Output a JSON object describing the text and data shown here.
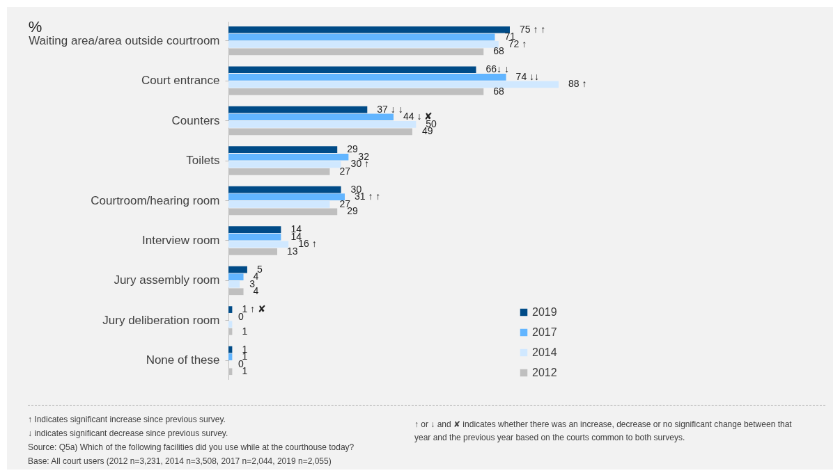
{
  "chart_data": {
    "type": "bar",
    "orientation": "horizontal",
    "title": "%",
    "categories": [
      "Waiting area/area outside courtroom",
      "Court entrance",
      "Counters",
      "Toilets",
      "Courtroom/hearing room",
      "Interview room",
      "Jury assembly room",
      "Jury deliberation room",
      "None of these"
    ],
    "series": [
      {
        "name": "2019",
        "color": "#004b87",
        "values": [
          75,
          66,
          37,
          29,
          30,
          14,
          5,
          1,
          1
        ],
        "value_labels": [
          "75 ↑ ↑",
          "66↓ ↓",
          "37 ↓ ↓",
          "29",
          "30",
          "14",
          "5",
          "1 ↑ ✘",
          "1"
        ]
      },
      {
        "name": "2017",
        "color": "#62b5ff",
        "values": [
          71,
          74,
          44,
          32,
          31,
          14,
          4,
          0,
          1
        ],
        "value_labels": [
          "71",
          "74 ↓↓",
          "44 ↓ ✘",
          "32",
          "31 ↑ ↑",
          "14",
          "4",
          "0",
          "1"
        ]
      },
      {
        "name": "2014",
        "color": "#d0e8ff",
        "values": [
          72,
          88,
          50,
          30,
          27,
          16,
          3,
          1,
          0
        ],
        "value_labels": [
          "72 ↑",
          "88 ↑",
          "50",
          "30 ↑",
          "27",
          "16 ↑",
          "3",
          null,
          "0"
        ]
      },
      {
        "name": "2012",
        "color": "#bfbfbf",
        "values": [
          68,
          68,
          49,
          27,
          29,
          13,
          4,
          1,
          1
        ],
        "value_labels": [
          "68",
          "68",
          "49",
          "27",
          "29",
          "13",
          "4",
          "1",
          "1"
        ]
      }
    ],
    "tick_labels": "y",
    "legend": "bottom right",
    "annotations": [
      "↑ Indicates significant increase since previous survey.",
      "↓ indicates significant decrease since previous survey.",
      "Source: Q5a) Which of the following facilities did you use while at the courthouse today?",
      "Base: All court users (2012 n=3,231, 2014 n=3,508, 2017 n=2,044, 2019 n=2,055)",
      "↑ or ↓ and ✘ indicates whether there was an increase, decrease or no significant change between that year and the previous year based on the courts common to both surveys."
    ]
  }
}
